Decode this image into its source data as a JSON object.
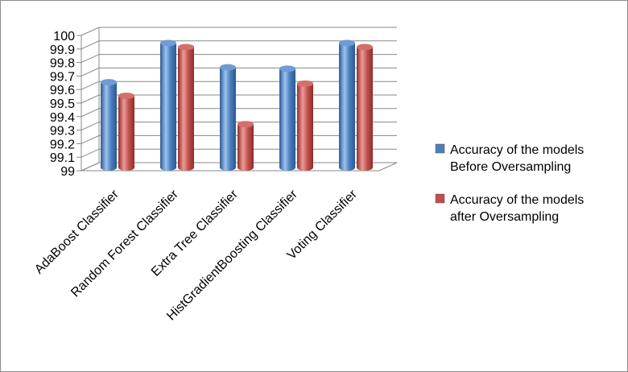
{
  "chart_data": {
    "type": "bar",
    "title": "",
    "xlabel": "",
    "ylabel": "",
    "ylim": [
      99,
      100
    ],
    "yticks": [
      "99",
      "99.1",
      "99.2",
      "99.3",
      "99.4",
      "99.5",
      "99.6",
      "99.7",
      "99.8",
      "99.9",
      "100"
    ],
    "categories": [
      "AdaBoost Classifier",
      "Random Forest Classifier",
      "Extra Tree Classifier",
      "HistGradientBoosting Classifier",
      "Voting Classifier"
    ],
    "series": [
      {
        "name": "Accuracy of the models Before Oversampling",
        "name_lines": [
          "Accuracy of the models",
          "Before Oversampling"
        ],
        "color": "#4a7ebb",
        "values": [
          99.63,
          99.92,
          99.74,
          99.73,
          99.92
        ]
      },
      {
        "name": "Accuracy of the models after Oversampling",
        "name_lines": [
          "Accuracy of the models",
          "after Oversampling"
        ],
        "color": "#c0504d",
        "values": [
          99.53,
          99.89,
          99.32,
          99.62,
          99.89
        ]
      }
    ],
    "grid": true,
    "legend_position": "right",
    "style": "3d-cylinder"
  }
}
